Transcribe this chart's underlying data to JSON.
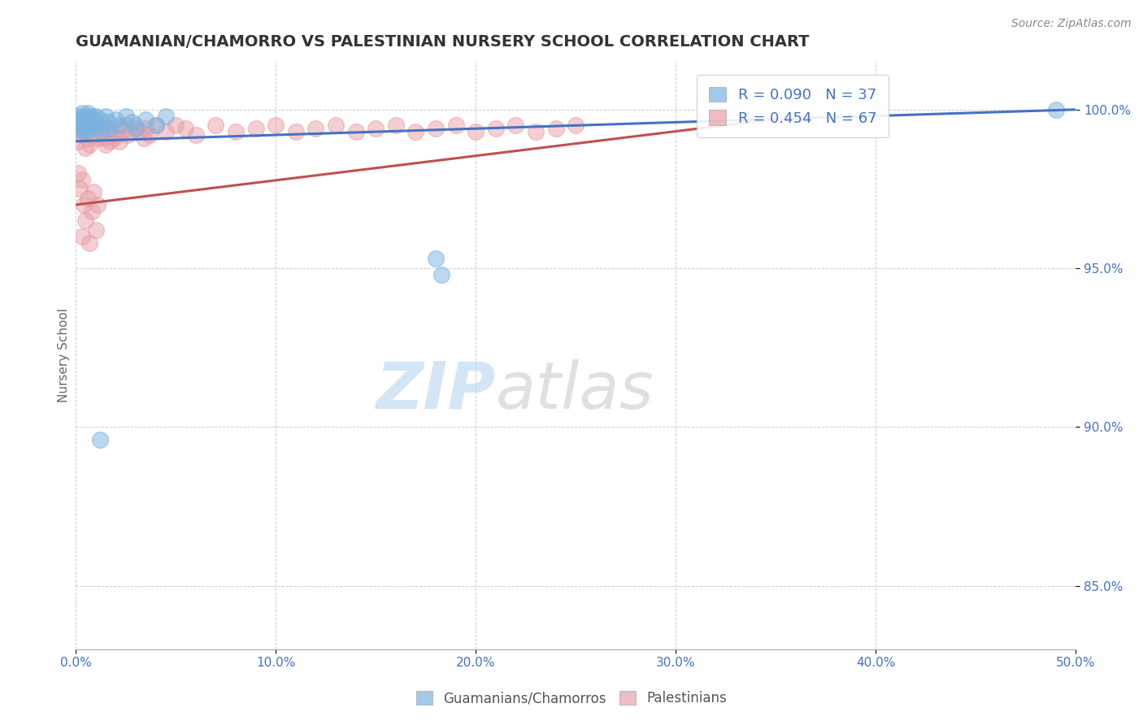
{
  "title": "GUAMANIAN/CHAMORRO VS PALESTINIAN NURSERY SCHOOL CORRELATION CHART",
  "source_text": "Source: ZipAtlas.com",
  "ylabel": "Nursery School",
  "xlim": [
    0.0,
    0.5
  ],
  "ylim": [
    0.83,
    1.015
  ],
  "xtick_labels": [
    "0.0%",
    "10.0%",
    "20.0%",
    "30.0%",
    "40.0%",
    "50.0%"
  ],
  "xtick_values": [
    0.0,
    0.1,
    0.2,
    0.3,
    0.4,
    0.5
  ],
  "ytick_labels": [
    "85.0%",
    "90.0%",
    "95.0%",
    "100.0%"
  ],
  "ytick_values": [
    0.85,
    0.9,
    0.95,
    1.0
  ],
  "blue_color": "#7ab3e0",
  "pink_color": "#e8a0a8",
  "blue_line_color": "#4472c4",
  "pink_line_color": "#c0504d",
  "R_blue": 0.09,
  "N_blue": 37,
  "R_pink": 0.454,
  "N_pink": 67,
  "legend_label_blue": "Guamanians/Chamorros",
  "legend_label_pink": "Palestinians",
  "watermark_zip": "ZIP",
  "watermark_atlas": "atlas",
  "background_color": "#ffffff",
  "title_fontsize": 14,
  "label_fontsize": 11,
  "tick_fontsize": 11,
  "source_fontsize": 10,
  "blue_scatter_x": [
    0.001,
    0.002,
    0.002,
    0.003,
    0.003,
    0.004,
    0.004,
    0.005,
    0.005,
    0.006,
    0.006,
    0.007,
    0.008,
    0.008,
    0.009,
    0.01,
    0.011,
    0.012,
    0.013,
    0.015,
    0.016,
    0.017,
    0.02,
    0.022,
    0.025,
    0.028,
    0.03,
    0.035,
    0.04,
    0.045,
    0.18,
    0.183,
    0.49,
    0.002,
    0.003,
    0.007,
    0.012
  ],
  "blue_scatter_y": [
    0.998,
    0.997,
    0.995,
    0.999,
    0.996,
    0.998,
    0.994,
    0.997,
    0.993,
    0.999,
    0.995,
    0.997,
    0.998,
    0.994,
    0.996,
    0.998,
    0.995,
    0.997,
    0.993,
    0.998,
    0.996,
    0.994,
    0.997,
    0.995,
    0.998,
    0.996,
    0.994,
    0.997,
    0.995,
    0.998,
    0.953,
    0.948,
    1.0,
    0.996,
    0.993,
    0.998,
    0.896
  ],
  "pink_scatter_x": [
    0.001,
    0.001,
    0.002,
    0.002,
    0.003,
    0.003,
    0.003,
    0.004,
    0.004,
    0.005,
    0.005,
    0.006,
    0.006,
    0.007,
    0.007,
    0.008,
    0.008,
    0.009,
    0.009,
    0.01,
    0.01,
    0.011,
    0.011,
    0.012,
    0.013,
    0.014,
    0.015,
    0.016,
    0.017,
    0.018,
    0.019,
    0.02,
    0.021,
    0.022,
    0.023,
    0.025,
    0.026,
    0.028,
    0.03,
    0.032,
    0.034,
    0.035,
    0.037,
    0.04,
    0.045,
    0.05,
    0.055,
    0.06,
    0.07,
    0.08,
    0.09,
    0.1,
    0.11,
    0.12,
    0.13,
    0.14,
    0.15,
    0.16,
    0.17,
    0.18,
    0.19,
    0.2,
    0.21,
    0.22,
    0.23,
    0.24,
    0.25
  ],
  "pink_scatter_y": [
    0.99,
    0.98,
    0.995,
    0.975,
    0.992,
    0.978,
    0.96,
    0.993,
    0.97,
    0.988,
    0.965,
    0.991,
    0.972,
    0.989,
    0.958,
    0.993,
    0.968,
    0.992,
    0.974,
    0.994,
    0.962,
    0.991,
    0.97,
    0.993,
    0.995,
    0.991,
    0.989,
    0.993,
    0.99,
    0.994,
    0.991,
    0.992,
    0.994,
    0.99,
    0.993,
    0.995,
    0.992,
    0.993,
    0.995,
    0.993,
    0.991,
    0.994,
    0.992,
    0.995,
    0.993,
    0.995,
    0.994,
    0.992,
    0.995,
    0.993,
    0.994,
    0.995,
    0.993,
    0.994,
    0.995,
    0.993,
    0.994,
    0.995,
    0.993,
    0.994,
    0.995,
    0.993,
    0.994,
    0.995,
    0.993,
    0.994,
    0.995
  ]
}
